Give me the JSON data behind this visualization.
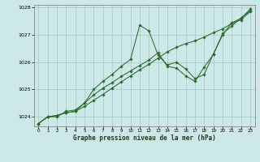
{
  "title": "Graphe pression niveau de la mer (hPa)",
  "bg_color": "#cce8e8",
  "line_color": "#2d6b2d",
  "grid_color": "#a8cccc",
  "ylim": [
    1023.65,
    1028.1
  ],
  "xlim": [
    -0.5,
    23.5
  ],
  "yticks": [
    1024,
    1025,
    1026,
    1027,
    1028
  ],
  "xticks": [
    0,
    1,
    2,
    3,
    4,
    5,
    6,
    7,
    8,
    9,
    10,
    11,
    12,
    13,
    14,
    15,
    16,
    17,
    18,
    19,
    20,
    21,
    22,
    23
  ],
  "series": [
    [
      1023.75,
      1024.0,
      1024.0,
      1024.2,
      1024.25,
      1024.5,
      1025.0,
      1025.3,
      1025.55,
      1025.85,
      1026.1,
      1027.35,
      1027.15,
      1026.25,
      1025.9,
      1026.0,
      1025.75,
      1025.4,
      1025.55,
      1026.3,
      1027.0,
      1027.45,
      1027.6,
      1027.95
    ],
    [
      1023.75,
      1024.0,
      1024.05,
      1024.15,
      1024.2,
      1024.38,
      1024.6,
      1024.82,
      1025.05,
      1025.28,
      1025.5,
      1025.72,
      1025.92,
      1026.15,
      1026.38,
      1026.55,
      1026.68,
      1026.78,
      1026.92,
      1027.08,
      1027.22,
      1027.42,
      1027.55,
      1027.85
    ],
    [
      1023.75,
      1024.0,
      1024.05,
      1024.15,
      1024.2,
      1024.5,
      1024.8,
      1025.05,
      1025.25,
      1025.48,
      1025.68,
      1025.88,
      1026.08,
      1026.35,
      1025.85,
      1025.78,
      1025.5,
      1025.3,
      1025.82,
      1026.28,
      1027.05,
      1027.32,
      1027.62,
      1027.88
    ]
  ]
}
